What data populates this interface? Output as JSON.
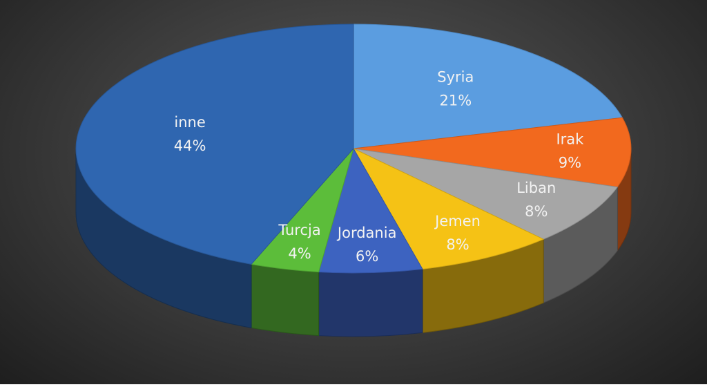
{
  "chart_data": {
    "type": "pie3d",
    "categories": [
      "Syria",
      "Irak",
      "Liban",
      "Jemen",
      "Jordania",
      "Turcja",
      "inne"
    ],
    "values": [
      21,
      9,
      8,
      8,
      6,
      4,
      44
    ],
    "value_labels": [
      "21%",
      "9%",
      "8%",
      "8%",
      "6%",
      "4%",
      "44%"
    ],
    "colors": [
      "#5b9de0",
      "#f2691e",
      "#a6a6a6",
      "#f5c215",
      "#3d63c0",
      "#5cbd3a",
      "#2f66b0"
    ]
  }
}
